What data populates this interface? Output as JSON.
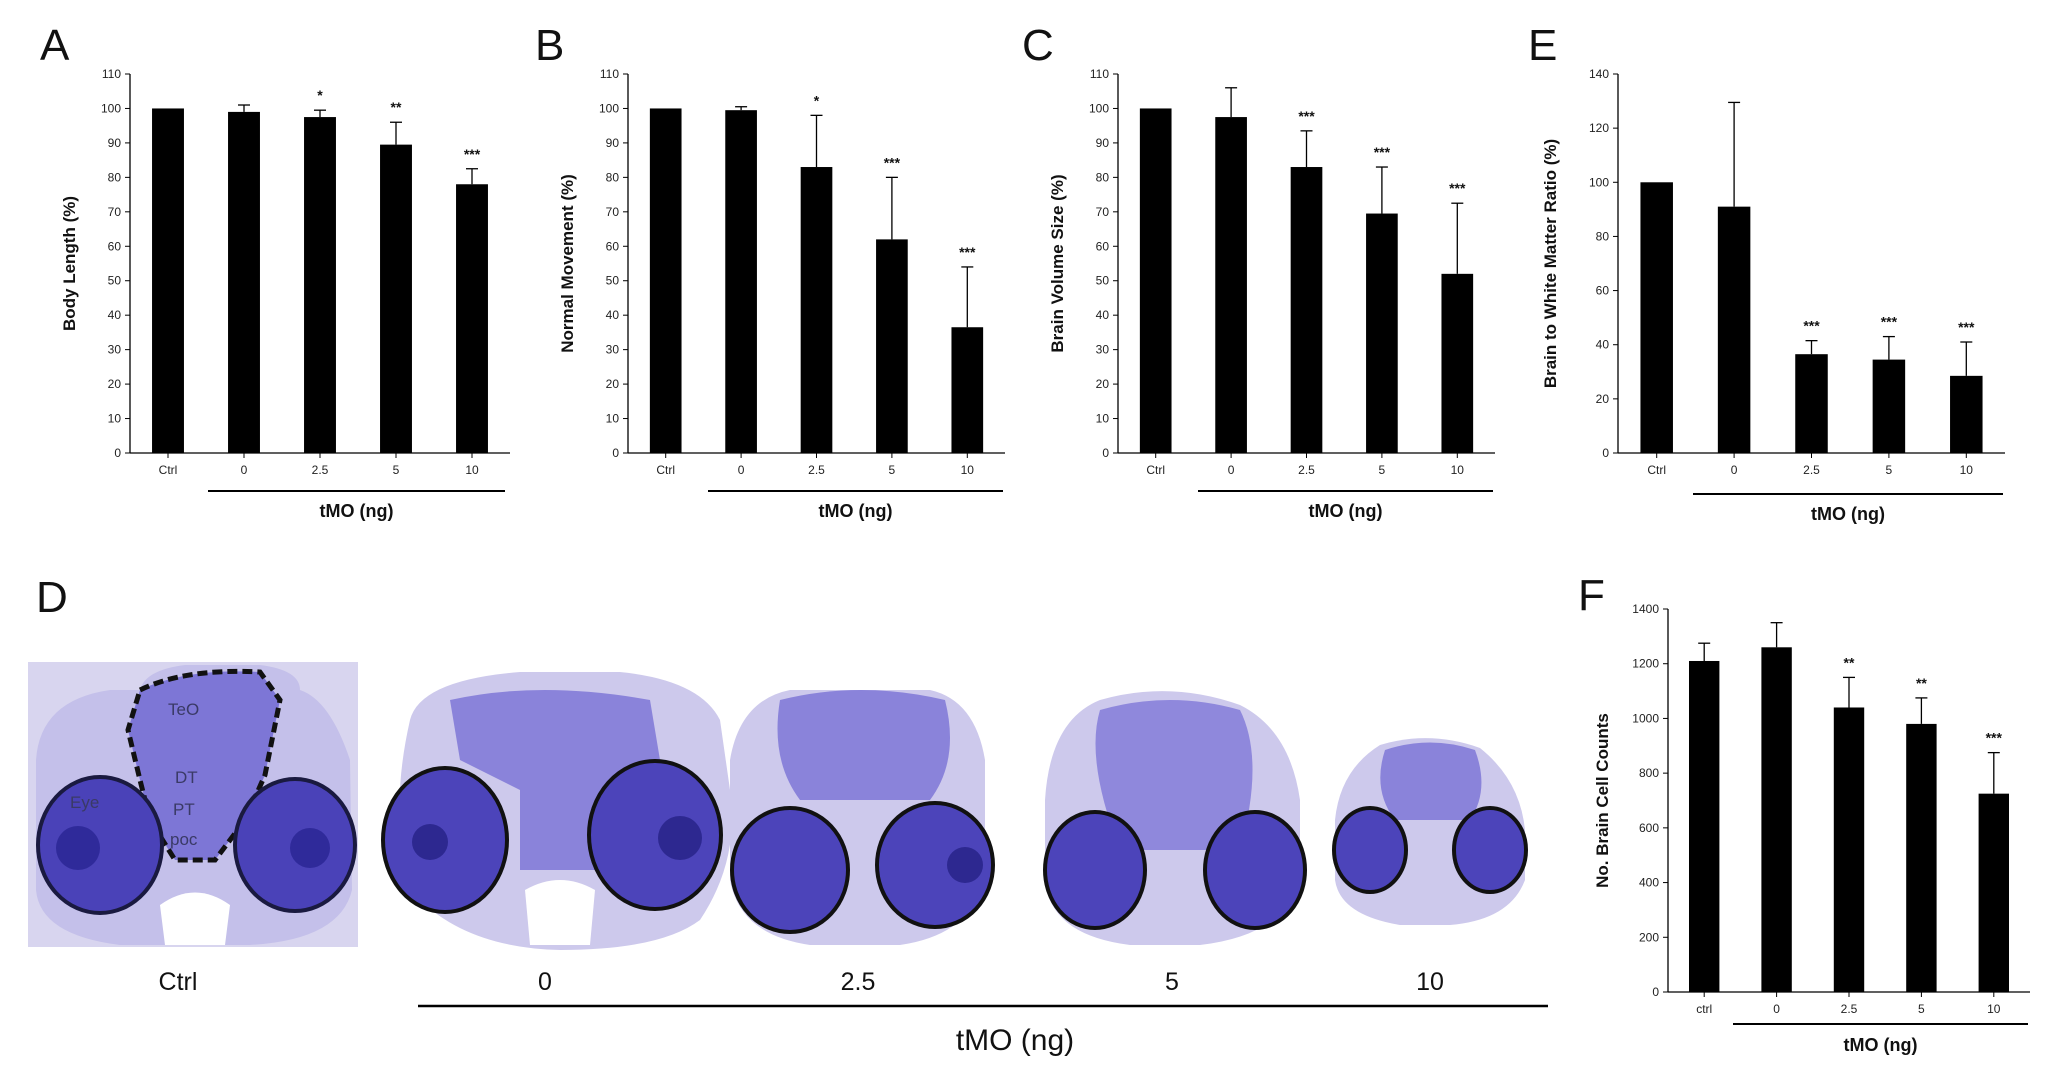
{
  "chart_data": [
    {
      "panel": "A",
      "type": "bar",
      "categories": [
        "Ctrl",
        "0",
        "2.5",
        "5",
        "10"
      ],
      "values": [
        100,
        99,
        97.5,
        89.5,
        78
      ],
      "errors": [
        0,
        2,
        2,
        6.5,
        4.5
      ],
      "significance": [
        "",
        "",
        "*",
        "**",
        "***"
      ],
      "ylabel": "Body Length  (%)",
      "group_label": "tMO (ng)",
      "ylim": [
        0,
        110
      ],
      "yticks": [
        0,
        10,
        20,
        30,
        40,
        50,
        60,
        70,
        80,
        90,
        100,
        110
      ]
    },
    {
      "panel": "B",
      "type": "bar",
      "categories": [
        "Ctrl",
        "0",
        "2.5",
        "5",
        "10"
      ],
      "values": [
        100,
        99.5,
        83,
        62,
        36.5
      ],
      "errors": [
        0,
        1,
        15,
        18,
        17.5
      ],
      "significance": [
        "",
        "",
        "*",
        "***",
        "***"
      ],
      "ylabel": "Normal Movement  (%)",
      "group_label": "tMO (ng)",
      "ylim": [
        0,
        110
      ],
      "yticks": [
        0,
        10,
        20,
        30,
        40,
        50,
        60,
        70,
        80,
        90,
        100,
        110
      ]
    },
    {
      "panel": "C",
      "type": "bar",
      "categories": [
        "Ctrl",
        "0",
        "2.5",
        "5",
        "10"
      ],
      "values": [
        100,
        97.5,
        83,
        69.5,
        52
      ],
      "errors": [
        0,
        8.5,
        10.5,
        13.5,
        20.5
      ],
      "significance": [
        "",
        "",
        "***",
        "***",
        "***"
      ],
      "ylabel": "Brain Volume Size (%)",
      "group_label": "tMO (ng)",
      "ylim": [
        0,
        110
      ],
      "yticks": [
        0,
        10,
        20,
        30,
        40,
        50,
        60,
        70,
        80,
        90,
        100,
        110
      ]
    },
    {
      "panel": "E",
      "type": "bar",
      "categories": [
        "Ctrl",
        "0",
        "2.5",
        "5",
        "10"
      ],
      "values": [
        100,
        91,
        36.5,
        34.5,
        28.5
      ],
      "errors": [
        0,
        38.5,
        5,
        8.5,
        12.5
      ],
      "significance": [
        "",
        "",
        "***",
        "***",
        "***"
      ],
      "ylabel": "Brain to White Matter Ratio  (%)",
      "group_label": "tMO (ng)",
      "ylim": [
        0,
        140
      ],
      "yticks": [
        0,
        20,
        40,
        60,
        80,
        100,
        120,
        140
      ]
    },
    {
      "panel": "F",
      "type": "bar",
      "categories": [
        "ctrl",
        "0",
        "2.5",
        "5",
        "10"
      ],
      "values": [
        1210,
        1260,
        1040,
        980,
        725
      ],
      "errors": [
        65,
        90,
        110,
        95,
        150
      ],
      "significance": [
        "",
        "",
        "**",
        "**",
        "***"
      ],
      "ylabel": "No. Brain Cell Counts",
      "group_label": "tMO (ng)",
      "ylim": [
        0,
        1400
      ],
      "yticks": [
        0,
        200,
        400,
        600,
        800,
        1000,
        1200,
        1400
      ]
    }
  ],
  "panel_d": {
    "letter": "D",
    "labels": [
      "Ctrl",
      "0",
      "2.5",
      "5",
      "10"
    ],
    "group_label": "tMO (ng)",
    "annotations": [
      "TeO",
      "DT",
      "Eye",
      "PT",
      "poc"
    ]
  },
  "colors": {
    "bar": "#000000",
    "tissue": "#5b52c9",
    "tissue_dark": "#2a2585",
    "background_tissue": "#d6d3ee"
  }
}
